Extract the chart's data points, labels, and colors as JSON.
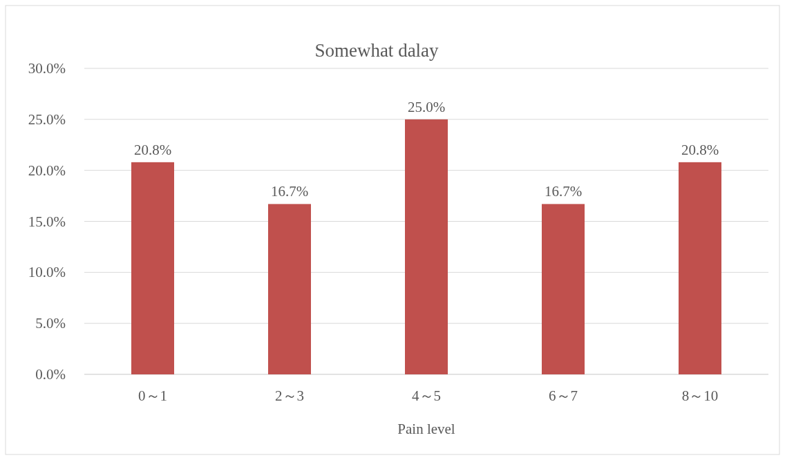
{
  "chart_data": {
    "type": "bar",
    "title": "Somewhat dalay",
    "xlabel": "Pain level",
    "categories": [
      "0～1",
      "2～3",
      "4～5",
      "6～7",
      "8～10"
    ],
    "values": [
      20.8,
      16.7,
      25.0,
      16.7,
      20.8
    ],
    "value_labels": [
      "20.8%",
      "16.7%",
      "25.0%",
      "16.7%",
      "20.8%"
    ],
    "color": "#c0504d",
    "ylim": [
      0,
      30
    ],
    "yticks": [
      {
        "value": 0,
        "label": "0.0%"
      },
      {
        "value": 5,
        "label": "5.0%"
      },
      {
        "value": 10,
        "label": "10.0%"
      },
      {
        "value": 15,
        "label": "15.0%"
      },
      {
        "value": 20,
        "label": "20.0%"
      },
      {
        "value": 25,
        "label": "25.0%"
      },
      {
        "value": 30,
        "label": "30.0%"
      }
    ],
    "grid": "y"
  }
}
